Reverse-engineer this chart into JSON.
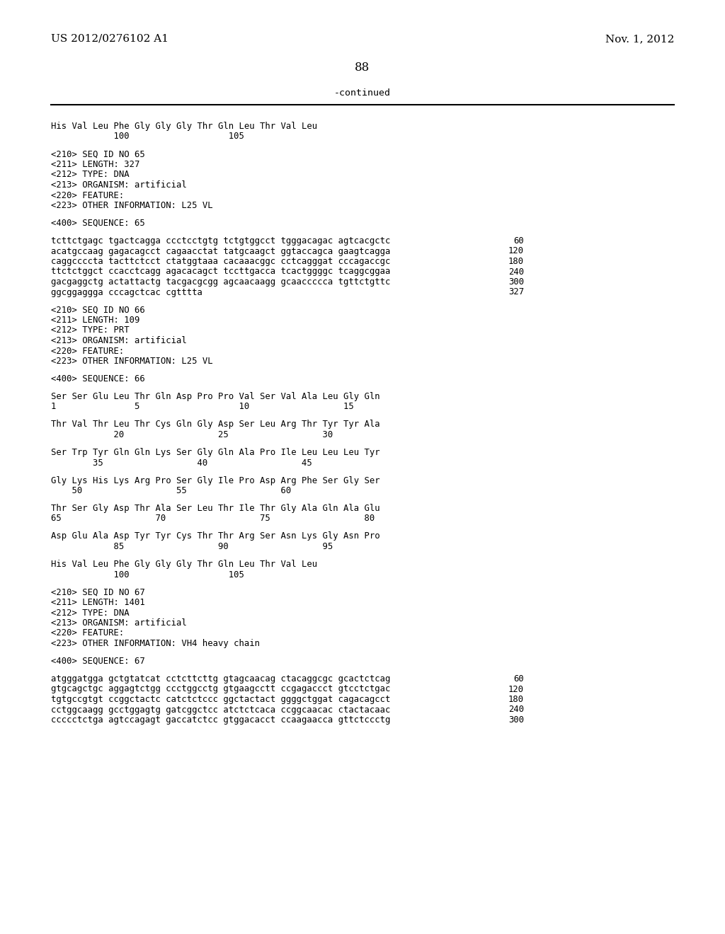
{
  "header_left": "US 2012/0276102 A1",
  "header_right": "Nov. 1, 2012",
  "page_number": "88",
  "continued_label": "-continued",
  "background_color": "#ffffff",
  "text_color": "#000000",
  "content_lines": [
    {
      "text": "His Val Leu Phe Gly Gly Gly Thr Gln Leu Thr Val Leu",
      "num": null,
      "indent": 0
    },
    {
      "text": "            100                   105",
      "num": null,
      "indent": 0
    },
    {
      "text": "",
      "num": null,
      "indent": 0
    },
    {
      "text": "<210> SEQ ID NO 65",
      "num": null,
      "indent": 0
    },
    {
      "text": "<211> LENGTH: 327",
      "num": null,
      "indent": 0
    },
    {
      "text": "<212> TYPE: DNA",
      "num": null,
      "indent": 0
    },
    {
      "text": "<213> ORGANISM: artificial",
      "num": null,
      "indent": 0
    },
    {
      "text": "<220> FEATURE:",
      "num": null,
      "indent": 0
    },
    {
      "text": "<223> OTHER INFORMATION: L25 VL",
      "num": null,
      "indent": 0
    },
    {
      "text": "",
      "num": null,
      "indent": 0
    },
    {
      "text": "<400> SEQUENCE: 65",
      "num": null,
      "indent": 0
    },
    {
      "text": "",
      "num": null,
      "indent": 0
    },
    {
      "text": "tcttctgagc tgactcagga ccctcctgtg tctgtggcct tgggacagac agtcacgctc",
      "num": "60",
      "indent": 0
    },
    {
      "text": "acatgccaag gagacagcct cagaacctat tatgcaagct ggtaccagca gaagtcagga",
      "num": "120",
      "indent": 0
    },
    {
      "text": "caggccccta tacttctcct ctatggtaaa cacaaacggc cctcagggat cccagaccgc",
      "num": "180",
      "indent": 0
    },
    {
      "text": "ttctctggct ccacctcagg agacacagct tccttgacca tcactggggc tcaggcggaa",
      "num": "240",
      "indent": 0
    },
    {
      "text": "gacgaggctg actattactg tacgacgcgg agcaacaagg gcaaccccca tgttctgttc",
      "num": "300",
      "indent": 0
    },
    {
      "text": "ggcggaggga cccagctcac cgtttta",
      "num": "327",
      "indent": 0
    },
    {
      "text": "",
      "num": null,
      "indent": 0
    },
    {
      "text": "<210> SEQ ID NO 66",
      "num": null,
      "indent": 0
    },
    {
      "text": "<211> LENGTH: 109",
      "num": null,
      "indent": 0
    },
    {
      "text": "<212> TYPE: PRT",
      "num": null,
      "indent": 0
    },
    {
      "text": "<213> ORGANISM: artificial",
      "num": null,
      "indent": 0
    },
    {
      "text": "<220> FEATURE:",
      "num": null,
      "indent": 0
    },
    {
      "text": "<223> OTHER INFORMATION: L25 VL",
      "num": null,
      "indent": 0
    },
    {
      "text": "",
      "num": null,
      "indent": 0
    },
    {
      "text": "<400> SEQUENCE: 66",
      "num": null,
      "indent": 0
    },
    {
      "text": "",
      "num": null,
      "indent": 0
    },
    {
      "text": "Ser Ser Glu Leu Thr Gln Asp Pro Pro Val Ser Val Ala Leu Gly Gln",
      "num": null,
      "indent": 0
    },
    {
      "text": "1               5                   10                  15",
      "num": null,
      "indent": 0
    },
    {
      "text": "",
      "num": null,
      "indent": 0
    },
    {
      "text": "Thr Val Thr Leu Thr Cys Gln Gly Asp Ser Leu Arg Thr Tyr Tyr Ala",
      "num": null,
      "indent": 0
    },
    {
      "text": "            20                  25                  30",
      "num": null,
      "indent": 0
    },
    {
      "text": "",
      "num": null,
      "indent": 0
    },
    {
      "text": "Ser Trp Tyr Gln Gln Lys Ser Gly Gln Ala Pro Ile Leu Leu Leu Tyr",
      "num": null,
      "indent": 0
    },
    {
      "text": "        35                  40                  45",
      "num": null,
      "indent": 0
    },
    {
      "text": "",
      "num": null,
      "indent": 0
    },
    {
      "text": "Gly Lys His Lys Arg Pro Ser Gly Ile Pro Asp Arg Phe Ser Gly Ser",
      "num": null,
      "indent": 0
    },
    {
      "text": "    50                  55                  60",
      "num": null,
      "indent": 0
    },
    {
      "text": "",
      "num": null,
      "indent": 0
    },
    {
      "text": "Thr Ser Gly Asp Thr Ala Ser Leu Thr Ile Thr Gly Ala Gln Ala Glu",
      "num": null,
      "indent": 0
    },
    {
      "text": "65                  70                  75                  80",
      "num": null,
      "indent": 0
    },
    {
      "text": "",
      "num": null,
      "indent": 0
    },
    {
      "text": "Asp Glu Ala Asp Tyr Tyr Cys Thr Thr Arg Ser Asn Lys Gly Asn Pro",
      "num": null,
      "indent": 0
    },
    {
      "text": "            85                  90                  95",
      "num": null,
      "indent": 0
    },
    {
      "text": "",
      "num": null,
      "indent": 0
    },
    {
      "text": "His Val Leu Phe Gly Gly Gly Thr Gln Leu Thr Val Leu",
      "num": null,
      "indent": 0
    },
    {
      "text": "            100                   105",
      "num": null,
      "indent": 0
    },
    {
      "text": "",
      "num": null,
      "indent": 0
    },
    {
      "text": "<210> SEQ ID NO 67",
      "num": null,
      "indent": 0
    },
    {
      "text": "<211> LENGTH: 1401",
      "num": null,
      "indent": 0
    },
    {
      "text": "<212> TYPE: DNA",
      "num": null,
      "indent": 0
    },
    {
      "text": "<213> ORGANISM: artificial",
      "num": null,
      "indent": 0
    },
    {
      "text": "<220> FEATURE:",
      "num": null,
      "indent": 0
    },
    {
      "text": "<223> OTHER INFORMATION: VH4 heavy chain",
      "num": null,
      "indent": 0
    },
    {
      "text": "",
      "num": null,
      "indent": 0
    },
    {
      "text": "<400> SEQUENCE: 67",
      "num": null,
      "indent": 0
    },
    {
      "text": "",
      "num": null,
      "indent": 0
    },
    {
      "text": "atgggatgga gctgtatcat cctcttcttg gtagcaacag ctacaggcgc gcactctcag",
      "num": "60",
      "indent": 0
    },
    {
      "text": "gtgcagctgc aggagtctgg ccctggcctg gtgaagcctt ccgagaccct gtcctctgac",
      "num": "120",
      "indent": 0
    },
    {
      "text": "tgtgccgtgt ccggctactc catctctccc ggctactact ggggctggat cagacagcct",
      "num": "180",
      "indent": 0
    },
    {
      "text": "cctggcaagg gcctggagtg gatcggctcc atctctcaca ccggcaacac ctactacaac",
      "num": "240",
      "indent": 0
    },
    {
      "text": "ccccctctga agtccagagt gaccatctcc gtggacacct ccaagaacca gttctccctg",
      "num": "300",
      "indent": 0
    }
  ]
}
